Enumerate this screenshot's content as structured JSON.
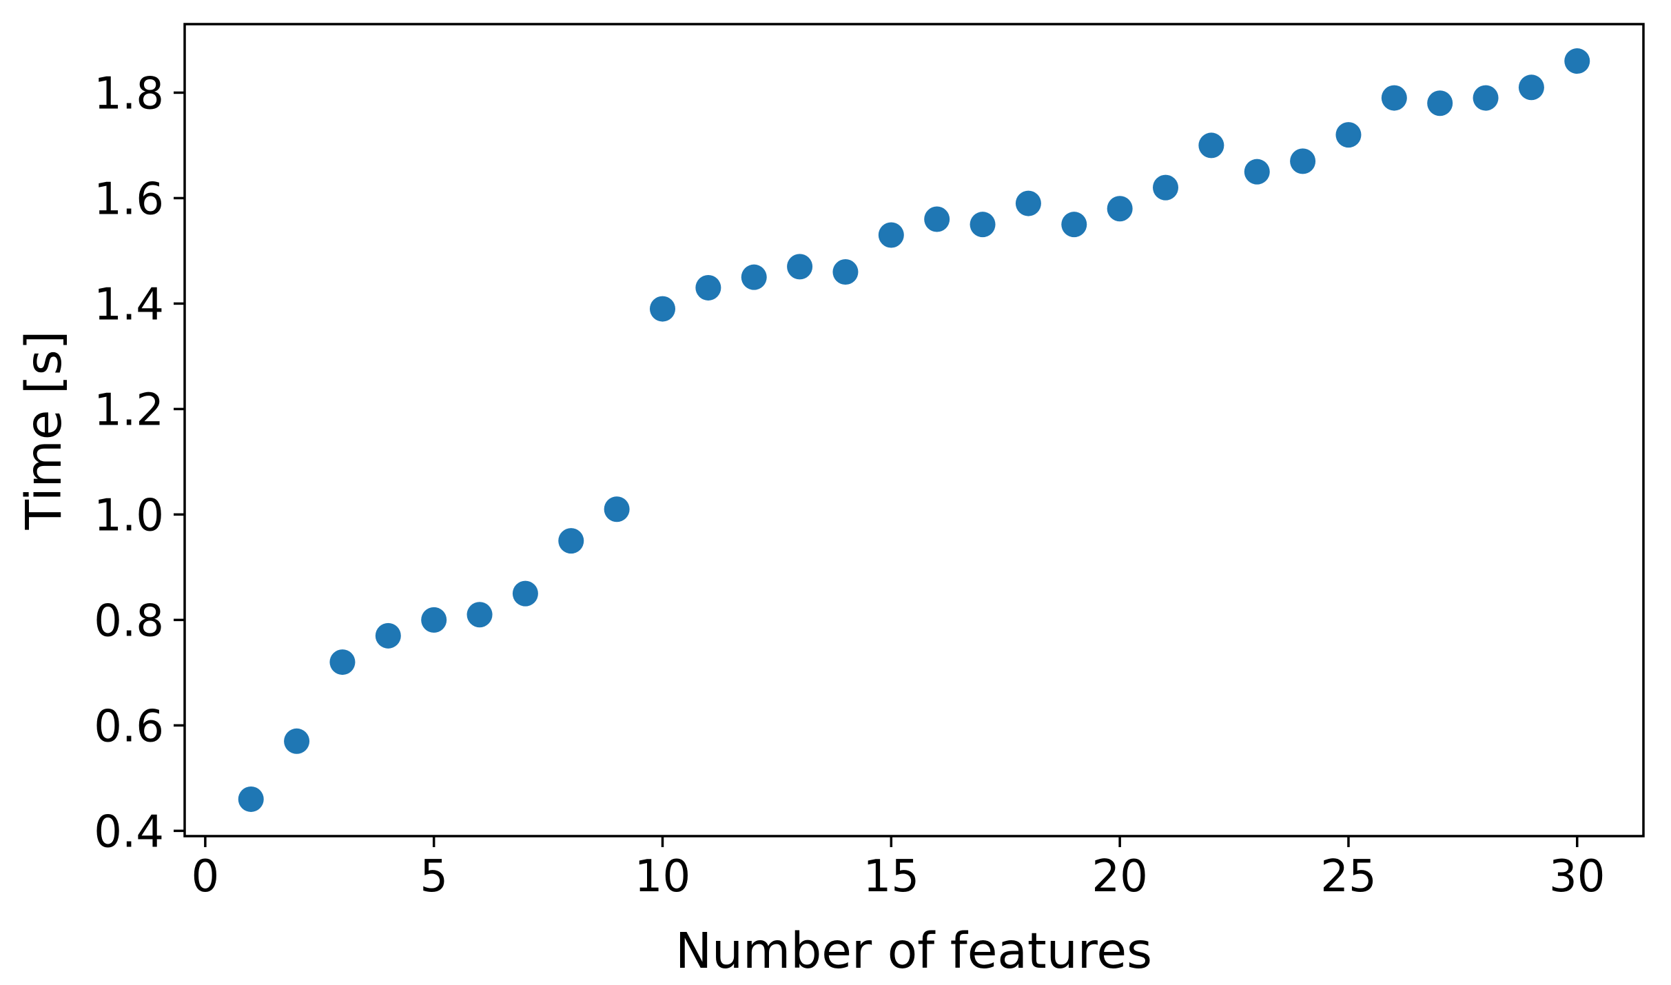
{
  "chart_data": {
    "type": "scatter",
    "title": "",
    "xlabel": "Number of features",
    "ylabel": "Time [s]",
    "x": [
      1,
      2,
      3,
      4,
      5,
      6,
      7,
      8,
      9,
      10,
      11,
      12,
      13,
      14,
      15,
      16,
      17,
      18,
      19,
      20,
      21,
      22,
      23,
      24,
      25,
      26,
      27,
      28,
      29,
      30
    ],
    "y": [
      0.46,
      0.57,
      0.72,
      0.77,
      0.8,
      0.81,
      0.85,
      0.95,
      1.01,
      1.39,
      1.43,
      1.45,
      1.47,
      1.46,
      1.53,
      1.56,
      1.55,
      1.59,
      1.55,
      1.58,
      1.62,
      1.7,
      1.65,
      1.67,
      1.72,
      1.79,
      1.78,
      1.79,
      1.81,
      1.86
    ],
    "xlim": [
      -0.45,
      31.45
    ],
    "ylim": [
      0.39,
      1.93
    ],
    "xtick_labels": [
      "0",
      "5",
      "10",
      "15",
      "20",
      "25",
      "30"
    ],
    "ytick_labels": [
      "0.4",
      "0.6",
      "0.8",
      "1.0",
      "1.2",
      "1.4",
      "1.6",
      "1.8"
    ],
    "grid": false,
    "legend": null,
    "marker_color": "#1f77b4",
    "axis_color": "#000000"
  }
}
